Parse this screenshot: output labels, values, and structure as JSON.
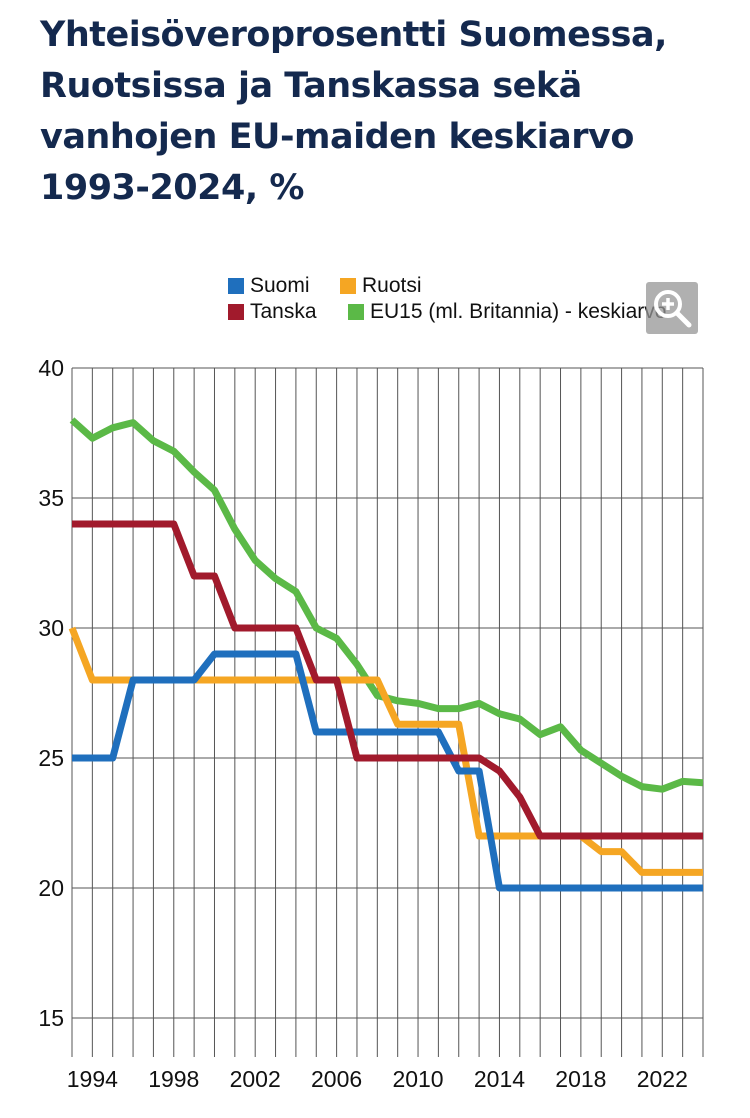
{
  "title": "Yhteisöveroprosentti Suomessa, Ruotsissa ja Tanskassa sekä vanhojen EU-maiden keskiarvo 1993-2024, %",
  "legend": [
    {
      "label": "Suomi",
      "color": "#1f6fbd"
    },
    {
      "label": "Ruotsi",
      "color": "#f5a623"
    },
    {
      "label": "Tanska",
      "color": "#a11a2c"
    },
    {
      "label": "EU15 (ml. Britannia) - keskiarvo",
      "color": "#5bb947"
    }
  ],
  "zoom_icon": "zoom-in-icon",
  "chart_data": {
    "type": "line",
    "title": "Yhteisöveroprosentti Suomessa, Ruotsissa ja Tanskassa sekä vanhojen EU-maiden keskiarvo 1993-2024, %",
    "xlabel": "",
    "ylabel": "",
    "ylim": [
      15,
      40
    ],
    "xlim": [
      1993,
      2024
    ],
    "yticks": [
      15,
      20,
      25,
      30,
      35,
      40
    ],
    "xticks": [
      1994,
      1998,
      2002,
      2006,
      2010,
      2014,
      2018,
      2022
    ],
    "grid": true,
    "legend_position": "top",
    "x": [
      1993,
      1994,
      1995,
      1996,
      1997,
      1998,
      1999,
      2000,
      2001,
      2002,
      2003,
      2004,
      2005,
      2006,
      2007,
      2008,
      2009,
      2010,
      2011,
      2012,
      2013,
      2014,
      2015,
      2016,
      2017,
      2018,
      2019,
      2020,
      2021,
      2022,
      2023,
      2024
    ],
    "series": [
      {
        "name": "Suomi",
        "color": "#1f6fbd",
        "step": true,
        "values": [
          25,
          25,
          25,
          28,
          28,
          28,
          28,
          29,
          29,
          29,
          29,
          29,
          26,
          26,
          26,
          26,
          26,
          26,
          26,
          24.5,
          24.5,
          20,
          20,
          20,
          20,
          20,
          20,
          20,
          20,
          20,
          20,
          20
        ]
      },
      {
        "name": "Ruotsi",
        "color": "#f5a623",
        "step": true,
        "values": [
          30,
          28,
          28,
          28,
          28,
          28,
          28,
          28,
          28,
          28,
          28,
          28,
          28,
          28,
          28,
          28,
          26.3,
          26.3,
          26.3,
          26.3,
          22,
          22,
          22,
          22,
          22,
          22,
          21.4,
          21.4,
          20.6,
          20.6,
          20.6,
          20.6
        ]
      },
      {
        "name": "Tanska",
        "color": "#a11a2c",
        "step": true,
        "values": [
          34,
          34,
          34,
          34,
          34,
          34,
          32,
          32,
          30,
          30,
          30,
          30,
          28,
          28,
          25,
          25,
          25,
          25,
          25,
          25,
          25,
          24.5,
          23.5,
          22,
          22,
          22,
          22,
          22,
          22,
          22,
          22,
          22
        ]
      },
      {
        "name": "EU15 (ml. Britannia) - keskiarvo",
        "color": "#5bb947",
        "step": false,
        "values": [
          38,
          37.3,
          37.7,
          37.9,
          37.2,
          36.8,
          36,
          35.3,
          33.8,
          32.6,
          31.9,
          31.4,
          30,
          29.6,
          28.6,
          27.4,
          27.2,
          27.1,
          26.9,
          26.9,
          27.1,
          26.7,
          26.5,
          25.9,
          26.2,
          25.3,
          24.8,
          24.3,
          23.9,
          23.8,
          24.1,
          24.05
        ]
      }
    ]
  }
}
